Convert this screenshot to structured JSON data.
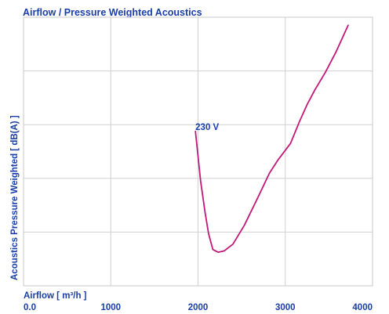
{
  "chart_data": {
    "type": "line",
    "title": "Airflow / Pressure Weighted Acoustics",
    "xlabel": "Airflow [ m³/h ]",
    "ylabel": "Acoustics Pressure Weighted [ dB(A) ]",
    "xlim": [
      0,
      4000
    ],
    "x_ticks": [
      "0.0",
      "1000",
      "2000",
      "3000",
      "4000"
    ],
    "grid": true,
    "series": [
      {
        "name": "230 V",
        "color": "#c2187a",
        "x": [
          1970,
          2030,
          2080,
          2120,
          2170,
          2230,
          2300,
          2400,
          2530,
          2680,
          2820,
          2920,
          3060,
          3160,
          3250,
          3340,
          3460,
          3580,
          3720
        ],
        "y_frac": [
          0.575,
          0.39,
          0.275,
          0.195,
          0.135,
          0.125,
          0.13,
          0.155,
          0.225,
          0.325,
          0.42,
          0.47,
          0.53,
          0.61,
          0.675,
          0.73,
          0.795,
          0.87,
          0.97
        ]
      }
    ]
  }
}
